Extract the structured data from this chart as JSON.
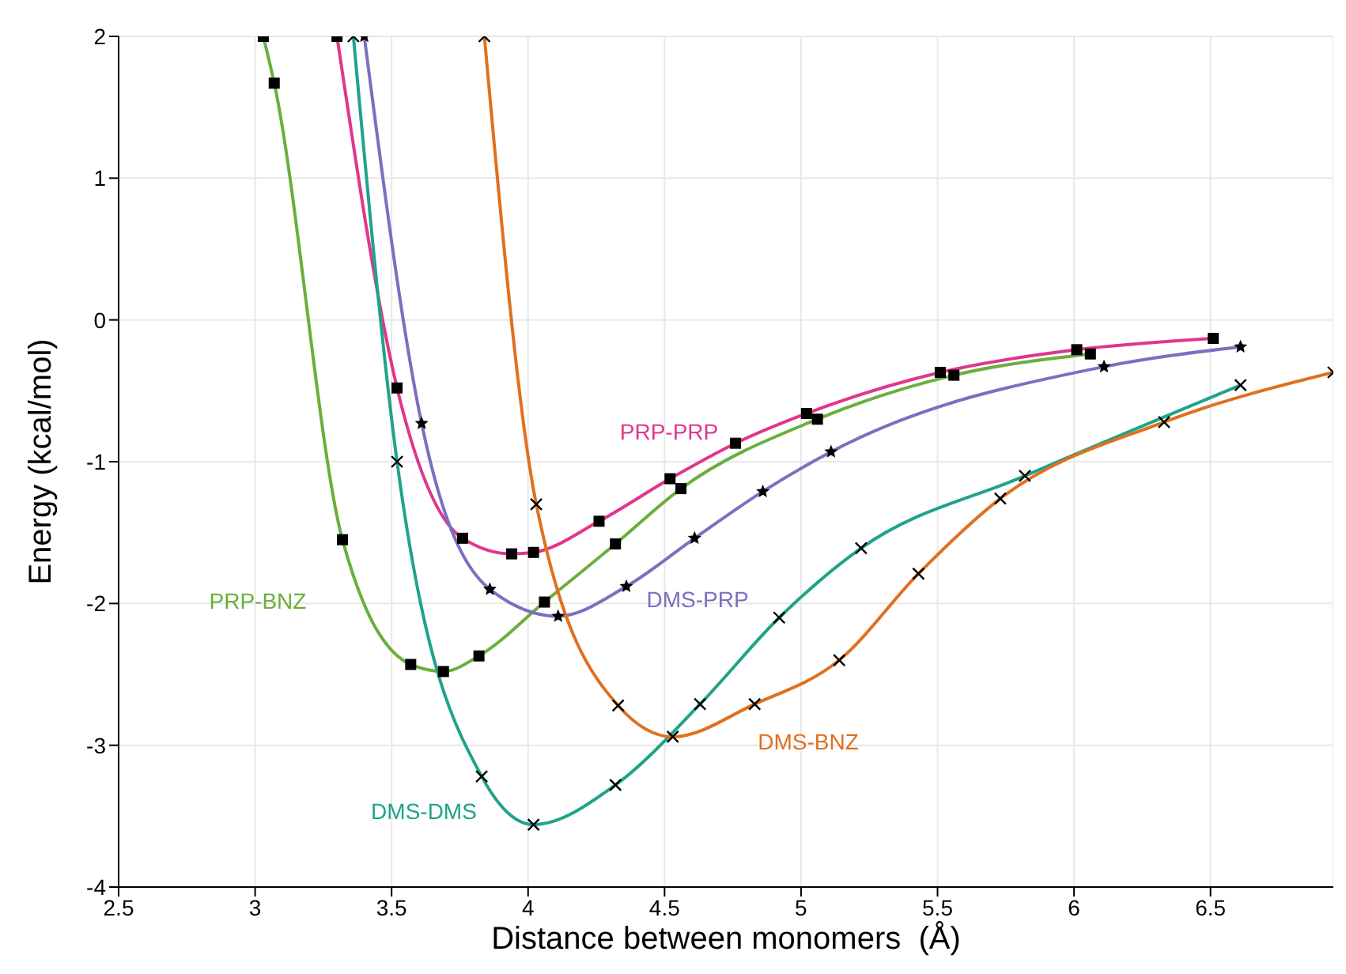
{
  "chart_data": {
    "type": "line",
    "xlabel": "Distance between monomers  (Å)",
    "ylabel": "Energy (kcal/mol)",
    "xlim": [
      2.5,
      6.95
    ],
    "ylim": [
      -4,
      2
    ],
    "xticks": [
      2.5,
      3,
      3.5,
      4,
      4.5,
      5,
      5.5,
      6,
      6.5
    ],
    "yticks": [
      -4,
      -3,
      -2,
      -1,
      0,
      1,
      2
    ],
    "grid": true,
    "line_style": "solid",
    "series": [
      {
        "name": "PRP-BNZ",
        "color": "#6aaf3c",
        "marker": "square",
        "x": [
          3.03,
          3.07,
          3.32,
          3.57,
          3.69,
          3.82,
          4.06,
          4.32,
          4.56,
          5.06,
          5.56,
          6.06
        ],
        "values": [
          2,
          1.67,
          -1.55,
          -2.43,
          -2.48,
          -2.37,
          -1.99,
          -1.58,
          -1.19,
          -0.7,
          -0.39,
          -0.24
        ]
      },
      {
        "name": "PRP-PRP",
        "color": "#e0368c",
        "marker": "square",
        "x": [
          3.3,
          3.52,
          3.76,
          3.94,
          4.02,
          4.26,
          4.52,
          4.76,
          5.02,
          5.51,
          6.01,
          6.51
        ],
        "values": [
          2,
          -0.48,
          -1.54,
          -1.65,
          -1.64,
          -1.42,
          -1.12,
          -0.87,
          -0.66,
          -0.37,
          -0.21,
          -0.13
        ]
      },
      {
        "name": "DMS-PRP",
        "color": "#7b6fc0",
        "marker": "star",
        "x": [
          3.4,
          3.61,
          3.86,
          4.11,
          4.36,
          4.61,
          4.86,
          5.11,
          6.11,
          6.61
        ],
        "values": [
          2,
          -0.73,
          -1.9,
          -2.09,
          -1.88,
          -1.54,
          -1.21,
          -0.93,
          -0.33,
          -0.19
        ]
      },
      {
        "name": "DMS-DMS",
        "color": "#1fa38a",
        "marker": "cross",
        "x": [
          3.36,
          3.52,
          3.83,
          4.02,
          4.32,
          4.63,
          4.92,
          5.22,
          5.82,
          6.61
        ],
        "values": [
          2,
          -1,
          -3.22,
          -3.56,
          -3.28,
          -2.71,
          -2.1,
          -1.61,
          -1.1,
          -0.46
        ]
      },
      {
        "name": "DMS-BNZ",
        "color": "#e0701f",
        "marker": "cross",
        "x": [
          3.84,
          4.03,
          4.33,
          4.53,
          4.83,
          5.14,
          5.43,
          5.73,
          6.33,
          6.95
        ],
        "values": [
          2,
          -1.3,
          -2.72,
          -2.94,
          -2.71,
          -2.4,
          -1.79,
          -1.26,
          -0.72,
          -0.37
        ]
      }
    ]
  }
}
